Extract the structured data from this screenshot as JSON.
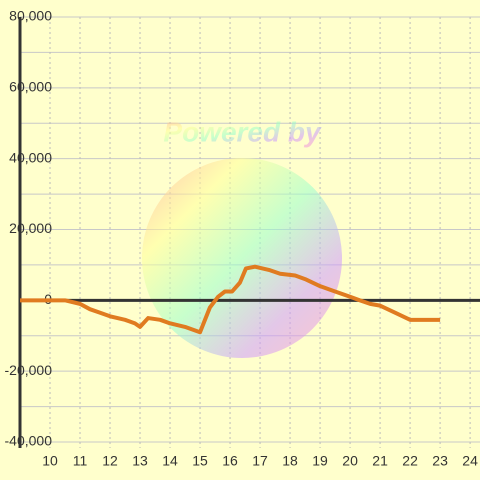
{
  "chart_data": {
    "type": "line",
    "watermark": "Powered by",
    "x": [
      9,
      10.5,
      11,
      11.33,
      11.67,
      12,
      12.5,
      12.83,
      13,
      13.27,
      13.67,
      14,
      14.5,
      15,
      15.33,
      15.6,
      15.83,
      16.07,
      16.33,
      16.53,
      16.83,
      17.33,
      17.67,
      18.17,
      18.5,
      19,
      19.5,
      20,
      20.33,
      20.67,
      21,
      21.5,
      22,
      23
    ],
    "series": [
      {
        "color": "#e07b20",
        "values": [
          0,
          0,
          -1000,
          -2500,
          -3500,
          -4500,
          -5500,
          -6500,
          -7500,
          -5000,
          -5500,
          -6500,
          -7500,
          -9000,
          -2000,
          1000,
          2500,
          2500,
          5000,
          9000,
          9500,
          8500,
          7500,
          7000,
          6000,
          4000,
          2500,
          1000,
          0,
          -1000,
          -1500,
          -3500,
          -5500,
          -5500
        ]
      }
    ],
    "xlim": [
      9,
      24.33
    ],
    "xticks": [
      10,
      11,
      12,
      13,
      14,
      15,
      16,
      17,
      18,
      19,
      20,
      21,
      22,
      23,
      24
    ],
    "ylim": [
      -40000,
      80000
    ],
    "yticks": [
      {
        "value": -40000,
        "label": "-40,000"
      },
      {
        "value": -20000,
        "label": "-20,000"
      },
      0,
      {
        "value": 20000,
        "label": "20,000"
      },
      {
        "value": 40000,
        "label": "40,000"
      },
      {
        "value": 60000,
        "label": "60,000"
      },
      {
        "value": 80000,
        "label": "80,000"
      }
    ],
    "y_minor_ticks": [
      -30000,
      -10000,
      10000,
      30000,
      50000,
      70000
    ],
    "grid": true
  }
}
